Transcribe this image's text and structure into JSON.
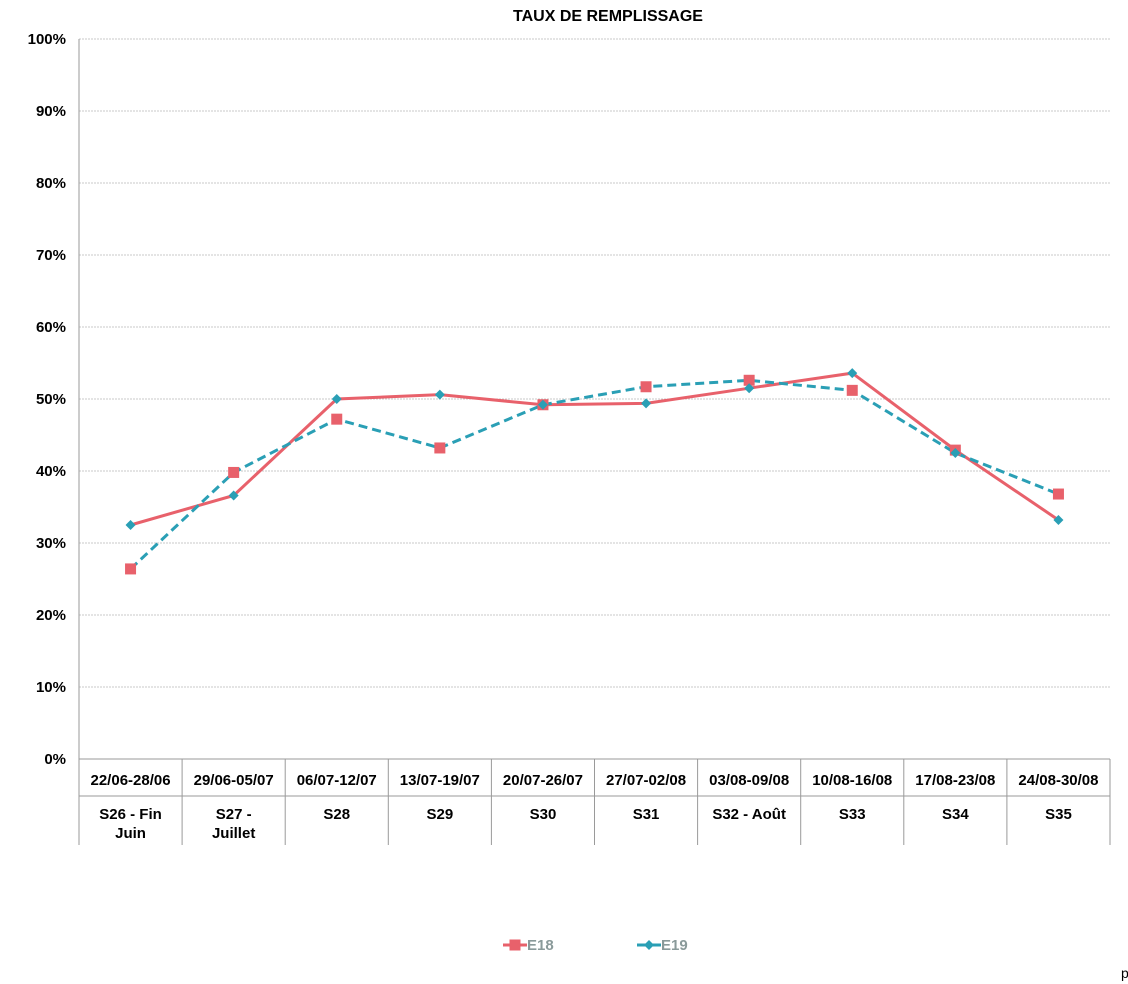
{
  "chart_data": {
    "type": "line",
    "title": "TAUX DE REMPLISSAGE",
    "ylim": [
      0,
      100
    ],
    "y_ticks": [
      "0%",
      "10%",
      "20%",
      "30%",
      "40%",
      "50%",
      "60%",
      "70%",
      "80%",
      "90%",
      "100%"
    ],
    "categories": [
      {
        "dates": "22/06-28/06",
        "week": [
          "S26 - Fin",
          "Juin"
        ]
      },
      {
        "dates": "29/06-05/07",
        "week": [
          "S27 -",
          "Juillet"
        ]
      },
      {
        "dates": "06/07-12/07",
        "week": [
          "S28"
        ]
      },
      {
        "dates": "13/07-19/07",
        "week": [
          "S29"
        ]
      },
      {
        "dates": "20/07-26/07",
        "week": [
          "S30"
        ]
      },
      {
        "dates": "27/07-02/08",
        "week": [
          "S31"
        ]
      },
      {
        "dates": "03/08-09/08",
        "week": [
          "S32 - Août"
        ]
      },
      {
        "dates": "10/08-16/08",
        "week": [
          "S33"
        ]
      },
      {
        "dates": "17/08-23/08",
        "week": [
          "S34"
        ]
      },
      {
        "dates": "24/08-30/08",
        "week": [
          "S35"
        ]
      }
    ],
    "series": [
      {
        "name": "E18",
        "color": "#e8616b",
        "line": "solid",
        "marker": "square",
        "marker_values": [
          26.4,
          39.8,
          47.2,
          43.2,
          49.2,
          51.7,
          52.6,
          51.2,
          42.9,
          36.8
        ],
        "line_values": [
          32.5,
          36.6,
          50.0,
          50.6,
          49.2,
          49.4,
          51.5,
          53.6,
          42.9,
          33.2
        ]
      },
      {
        "name": "E19",
        "color": "#2a9fb5",
        "line": "dashed",
        "marker": "diamond",
        "marker_values": [
          32.5,
          36.6,
          50.0,
          50.6,
          49.2,
          49.4,
          51.5,
          53.6,
          42.5,
          33.2
        ],
        "line_values": [
          26.4,
          39.8,
          47.2,
          43.2,
          49.2,
          51.7,
          52.6,
          51.2,
          42.5,
          36.8
        ]
      }
    ],
    "grid": true,
    "legend_position": "bottom"
  },
  "stray_text": "p"
}
